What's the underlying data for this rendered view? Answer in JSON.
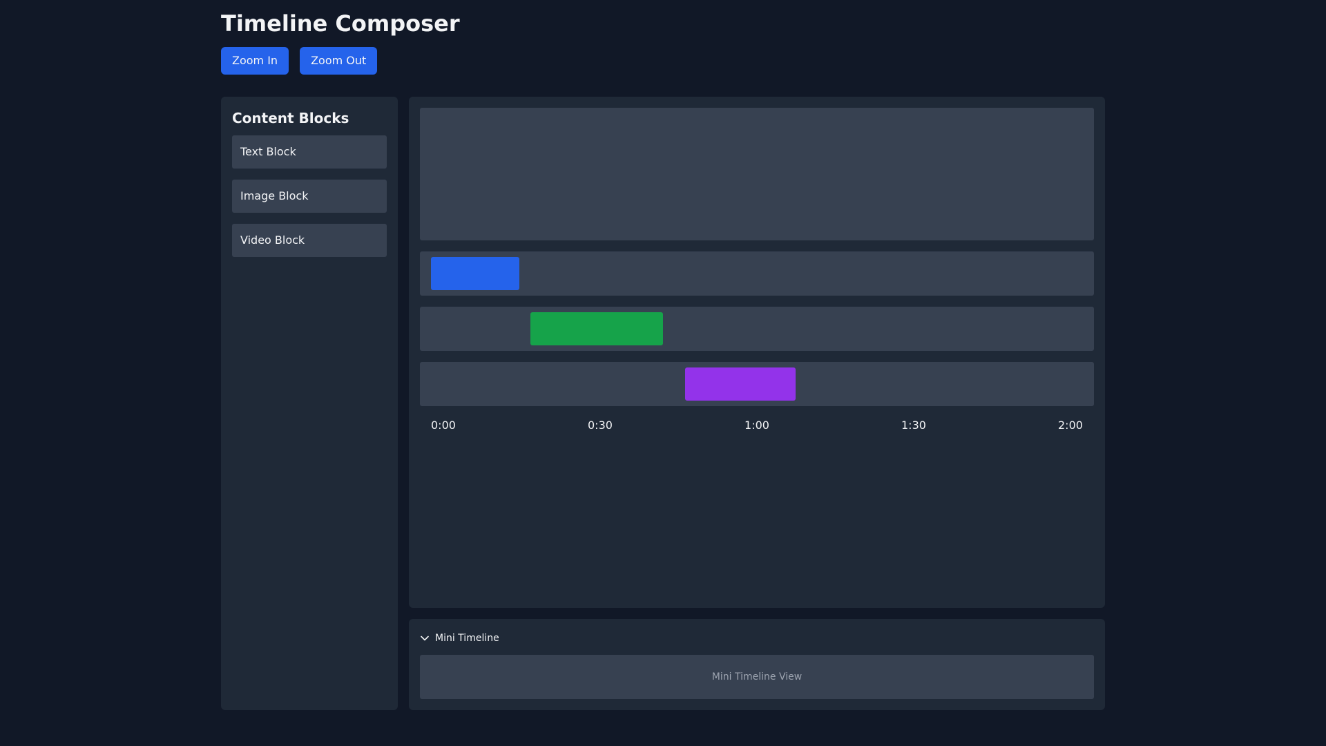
{
  "app": {
    "title": "Timeline Composer"
  },
  "toolbar": {
    "zoom_in_label": "Zoom In",
    "zoom_out_label": "Zoom Out",
    "accent_color": "#2563eb"
  },
  "sidebar": {
    "title": "Content Blocks",
    "items": [
      {
        "label": "Text Block"
      },
      {
        "label": "Image Block"
      },
      {
        "label": "Video Block"
      }
    ]
  },
  "timeline": {
    "tracks": [
      {
        "clip_color": "#2563eb"
      },
      {
        "clip_color": "#16a34a"
      },
      {
        "clip_color": "#9333ea"
      }
    ],
    "ruler_ticks": [
      "0:00",
      "0:30",
      "1:00",
      "1:30",
      "2:00"
    ]
  },
  "mini_timeline": {
    "toggle_label": "Mini Timeline",
    "expanded": true,
    "placeholder": "Mini Timeline View"
  },
  "colors": {
    "background": "#111827",
    "panel": "#1f2937",
    "surface": "#374151",
    "muted_text": "#9ca3af"
  }
}
